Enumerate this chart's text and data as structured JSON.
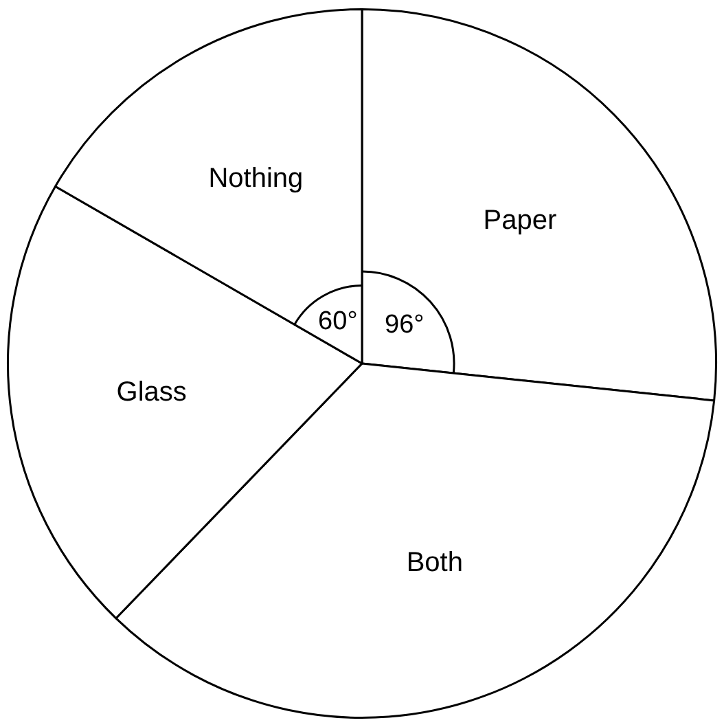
{
  "chart_data": {
    "type": "pie",
    "categories": [
      "Paper",
      "Both",
      "Glass",
      "Nothing"
    ],
    "values": [
      96,
      128,
      76,
      60
    ],
    "colors": [
      "#ffffff",
      "#ffffff",
      "#ffffff",
      "#ffffff"
    ],
    "value_labels": [
      "96°",
      null,
      null,
      "60°"
    ],
    "legend": false
  }
}
